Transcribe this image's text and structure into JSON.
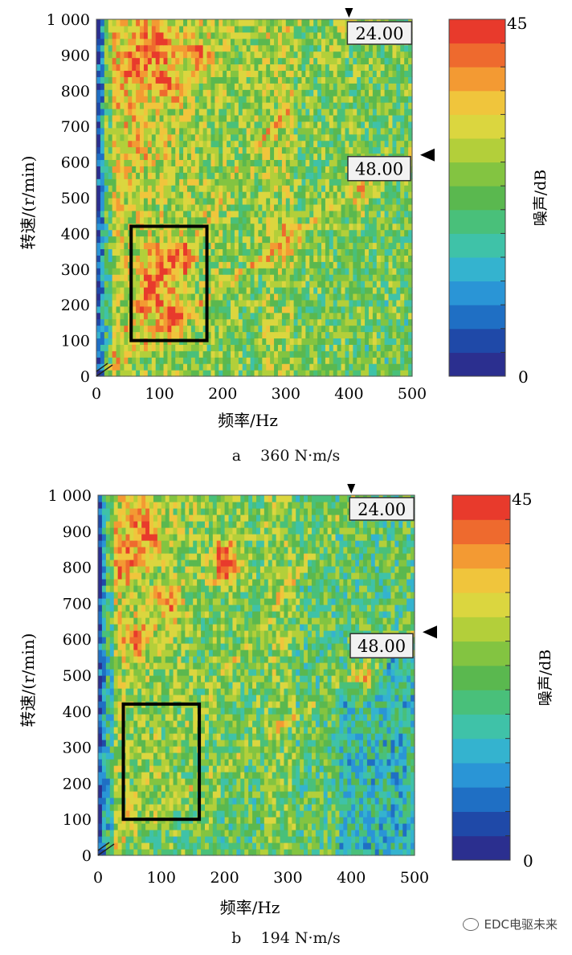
{
  "chart_data": [
    {
      "type": "heatmap",
      "panel_label": "a",
      "condition": "360 N·m/s",
      "caption": "a    360 N·m/s",
      "xlabel": "频率/Hz",
      "ylabel": "转速/(r/min)",
      "xlim": [
        0,
        500
      ],
      "ylim": [
        0,
        1000
      ],
      "xticks": [
        "0",
        "100",
        "200",
        "300",
        "400",
        "500"
      ],
      "yticks": [
        "0",
        "100",
        "200",
        "300",
        "400",
        "500",
        "600",
        "700",
        "800",
        "900",
        "1 000"
      ],
      "order_markers": [
        "24.00",
        "48.00"
      ],
      "colorbar": {
        "label": "噪声/dB",
        "min": 0,
        "max": 45,
        "min_label": "0",
        "max_label": "45"
      },
      "highlight_box": {
        "x": [
          55,
          175
        ],
        "y": [
          100,
          420
        ]
      },
      "hot_spots": [
        {
          "x": 70,
          "y": 880,
          "level": 42
        },
        {
          "x": 95,
          "y": 930,
          "level": 44
        },
        {
          "x": 110,
          "y": 820,
          "level": 40
        },
        {
          "x": 160,
          "y": 900,
          "level": 38
        },
        {
          "x": 100,
          "y": 300,
          "level": 43
        },
        {
          "x": 130,
          "y": 330,
          "level": 42
        },
        {
          "x": 120,
          "y": 170,
          "level": 44
        },
        {
          "x": 85,
          "y": 220,
          "level": 41
        },
        {
          "x": 60,
          "y": 650,
          "level": 36
        },
        {
          "x": 300,
          "y": 380,
          "level": 37
        },
        {
          "x": 420,
          "y": 520,
          "level": 34
        }
      ]
    },
    {
      "type": "heatmap",
      "panel_label": "b",
      "condition": "194 N·m/s",
      "caption": "b    194 N·m/s",
      "xlabel": "频率/Hz",
      "ylabel": "转速/(r/min)",
      "xlim": [
        0,
        500
      ],
      "ylim": [
        0,
        1000
      ],
      "xticks": [
        "0",
        "100",
        "200",
        "300",
        "400",
        "500"
      ],
      "yticks": [
        "0",
        "100",
        "200",
        "300",
        "400",
        "500",
        "600",
        "700",
        "800",
        "900",
        "1 000"
      ],
      "order_markers": [
        "24.00",
        "48.00"
      ],
      "colorbar": {
        "label": "噪声/dB",
        "min": 0,
        "max": 45,
        "min_label": "0",
        "max_label": "45"
      },
      "highlight_box": {
        "x": [
          40,
          160
        ],
        "y": [
          100,
          420
        ]
      },
      "hot_spots": [
        {
          "x": 40,
          "y": 820,
          "level": 42
        },
        {
          "x": 75,
          "y": 900,
          "level": 44
        },
        {
          "x": 200,
          "y": 820,
          "level": 44
        },
        {
          "x": 110,
          "y": 700,
          "level": 38
        },
        {
          "x": 60,
          "y": 600,
          "level": 36
        },
        {
          "x": 420,
          "y": 500,
          "level": 33
        }
      ]
    }
  ],
  "watermark": "EDC电驱未来",
  "palette": [
    "#2b2f8f",
    "#1f49a8",
    "#1f6fc4",
    "#2a95d6",
    "#34b3cf",
    "#3fc2a8",
    "#49c07a",
    "#5ab84f",
    "#83c441",
    "#b3cf3a",
    "#dbd63f",
    "#f0c53c",
    "#f39a33",
    "#ee6a2e",
    "#e83a2c"
  ]
}
